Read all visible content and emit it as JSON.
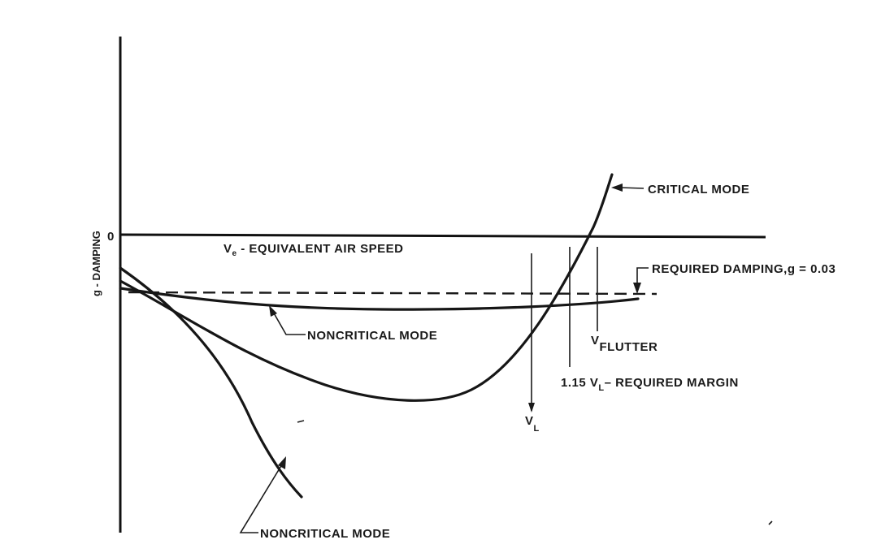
{
  "diagram": {
    "y_axis_label": "g - DAMPING",
    "zero_label": "0",
    "x_axis_label_v": "V",
    "x_axis_label_sub": "e",
    "x_axis_label_rest": " - EQUIVALENT AIR SPEED",
    "critical_mode": "CRITICAL MODE",
    "noncritical_mode_upper": "NONCRITICAL MODE",
    "noncritical_mode_lower": "NONCRITICAL MODE",
    "required_damping": "REQUIRED DAMPING,g = 0.03",
    "vflutter_v": "V",
    "vflutter_sub": "FLUTTER",
    "margin_prefix": "1.15 V",
    "margin_sub": "L",
    "margin_suffix": "– REQUIRED MARGIN",
    "vl_v": "V",
    "vl_sub": "L"
  }
}
